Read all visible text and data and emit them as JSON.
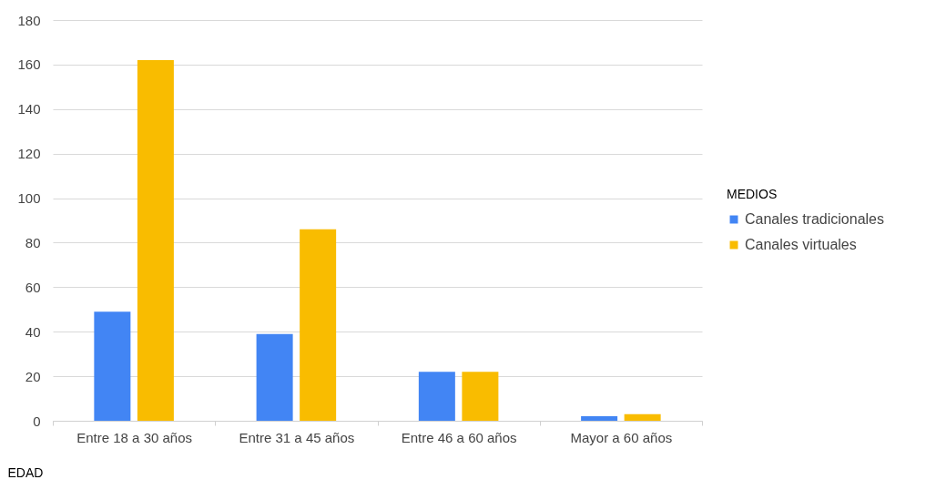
{
  "chart_data": {
    "type": "bar",
    "xlabel": "EDAD",
    "legend_title": "MEDIOS",
    "categories": [
      "Entre 18 a 30 años",
      "Entre 31 a 45 años",
      "Entre 46 a 60 años",
      "Mayor a 60 años"
    ],
    "series": [
      {
        "name": "Canales tradicionales",
        "color": "#4285f4",
        "values": [
          49,
          39,
          22,
          2
        ]
      },
      {
        "name": "Canales virtuales",
        "color": "#f9bc00",
        "values": [
          162,
          86,
          22,
          3
        ]
      }
    ],
    "ylim": [
      0,
      180
    ],
    "yticks": [
      0,
      20,
      40,
      60,
      80,
      100,
      120,
      140,
      160,
      180
    ],
    "grid": "y",
    "legend": "right"
  }
}
